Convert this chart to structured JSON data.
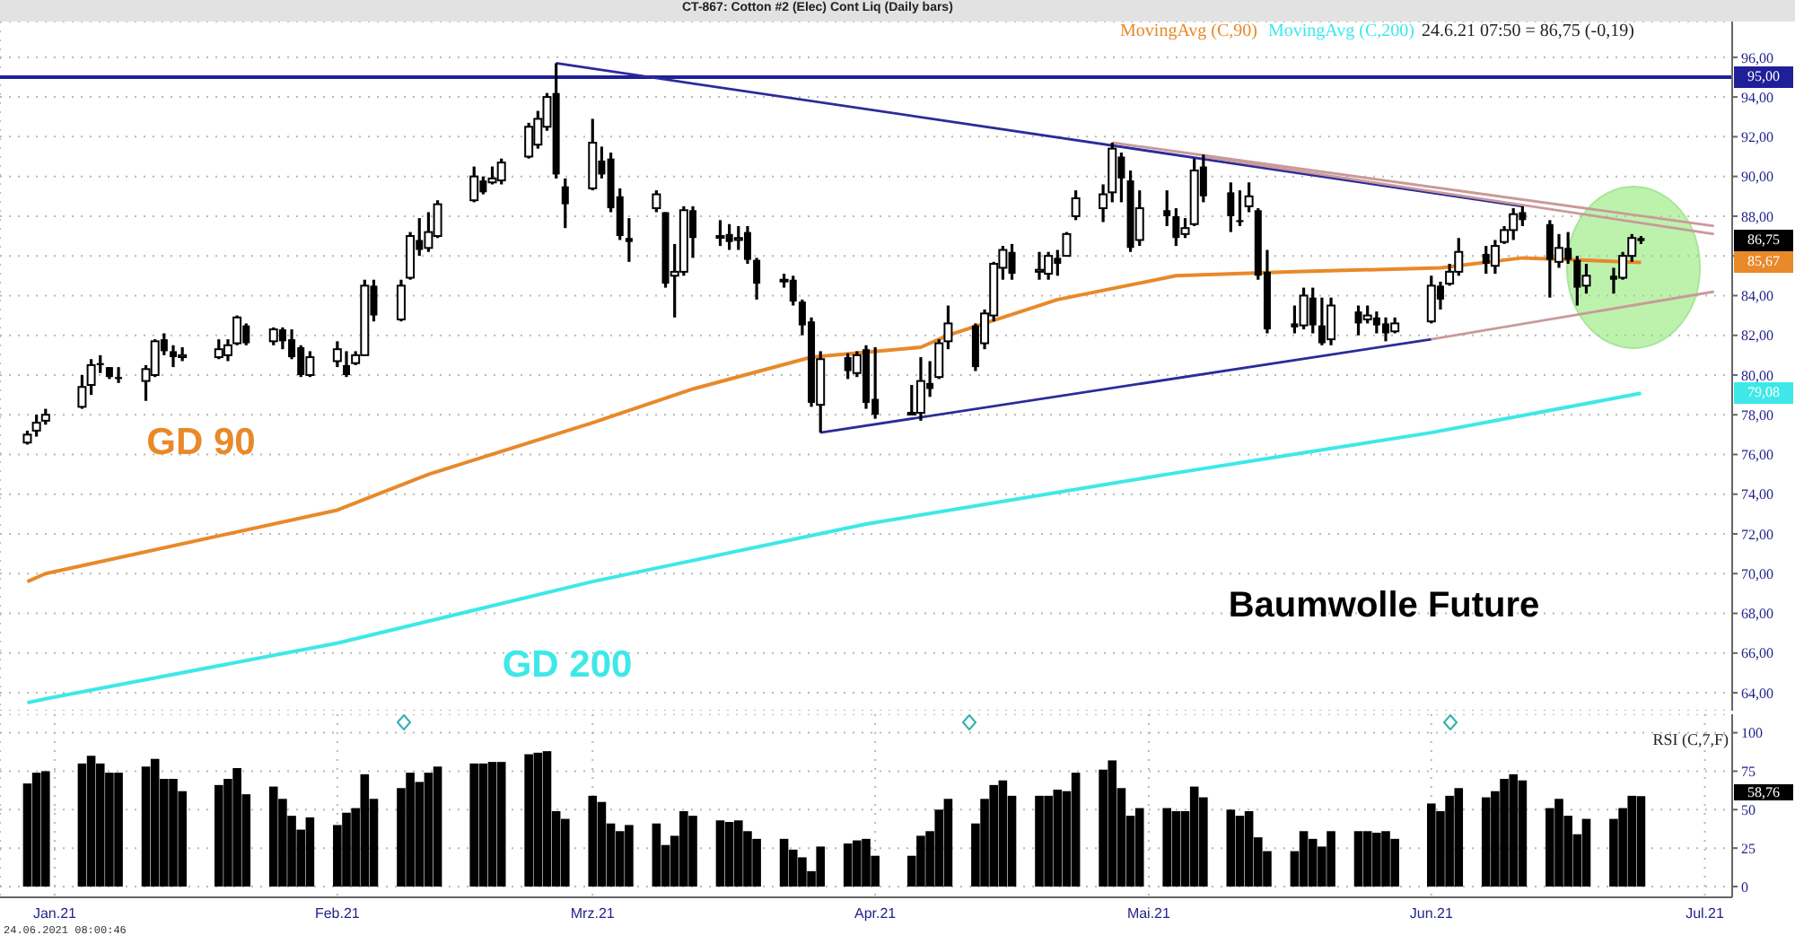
{
  "chart_data": [
    {
      "type": "candlestick",
      "title": "CT-867: Cotton #2 (Elec) Cont Liq (Daily bars)",
      "x": [
        "2020-12-29",
        "2020-12-30",
        "2020-12-31",
        "2021-01-04",
        "2021-01-05",
        "2021-01-06",
        "2021-01-07",
        "2021-01-08",
        "2021-01-11",
        "2021-01-12",
        "2021-01-13",
        "2021-01-14",
        "2021-01-15",
        "2021-01-19",
        "2021-01-20",
        "2021-01-21",
        "2021-01-22",
        "2021-01-25",
        "2021-01-26",
        "2021-01-27",
        "2021-01-28",
        "2021-01-29",
        "2021-02-01",
        "2021-02-02",
        "2021-02-03",
        "2021-02-04",
        "2021-02-05",
        "2021-02-08",
        "2021-02-09",
        "2021-02-10",
        "2021-02-11",
        "2021-02-12",
        "2021-02-16",
        "2021-02-17",
        "2021-02-18",
        "2021-02-19",
        "2021-02-22",
        "2021-02-23",
        "2021-02-24",
        "2021-02-25",
        "2021-02-26",
        "2021-03-01",
        "2021-03-02",
        "2021-03-03",
        "2021-03-04",
        "2021-03-05",
        "2021-03-08",
        "2021-03-09",
        "2021-03-10",
        "2021-03-11",
        "2021-03-12",
        "2021-03-15",
        "2021-03-16",
        "2021-03-17",
        "2021-03-18",
        "2021-03-19",
        "2021-03-22",
        "2021-03-23",
        "2021-03-24",
        "2021-03-25",
        "2021-03-26",
        "2021-03-29",
        "2021-03-30",
        "2021-03-31",
        "2021-04-01",
        "2021-04-05",
        "2021-04-06",
        "2021-04-07",
        "2021-04-08",
        "2021-04-09",
        "2021-04-12",
        "2021-04-13",
        "2021-04-14",
        "2021-04-15",
        "2021-04-16",
        "2021-04-19",
        "2021-04-20",
        "2021-04-21",
        "2021-04-22",
        "2021-04-23",
        "2021-04-26",
        "2021-04-27",
        "2021-04-28",
        "2021-04-29",
        "2021-04-30",
        "2021-05-03",
        "2021-05-04",
        "2021-05-05",
        "2021-05-06",
        "2021-05-07",
        "2021-05-10",
        "2021-05-11",
        "2021-05-12",
        "2021-05-13",
        "2021-05-14",
        "2021-05-17",
        "2021-05-18",
        "2021-05-19",
        "2021-05-20",
        "2021-05-21",
        "2021-05-24",
        "2021-05-25",
        "2021-05-26",
        "2021-05-27",
        "2021-05-28",
        "2021-06-01",
        "2021-06-02",
        "2021-06-03",
        "2021-06-04",
        "2021-06-07",
        "2021-06-08",
        "2021-06-09",
        "2021-06-10",
        "2021-06-11",
        "2021-06-14",
        "2021-06-15",
        "2021-06-16",
        "2021-06-17",
        "2021-06-18",
        "2021-06-21",
        "2021-06-22",
        "2021-06-23",
        "2021-06-24"
      ],
      "ohlc": [
        [
          76.6,
          77.2,
          76.5,
          77.0
        ],
        [
          77.2,
          78.0,
          76.9,
          77.6
        ],
        [
          77.7,
          78.3,
          77.5,
          78.0
        ],
        [
          78.4,
          80.0,
          78.3,
          79.4
        ],
        [
          79.5,
          80.8,
          79.0,
          80.5
        ],
        [
          80.6,
          81.0,
          80.1,
          80.5
        ],
        [
          80.4,
          80.4,
          79.8,
          79.9
        ],
        [
          79.9,
          80.4,
          79.6,
          79.8
        ],
        [
          79.7,
          80.5,
          78.7,
          80.3
        ],
        [
          80.0,
          81.8,
          79.9,
          81.7
        ],
        [
          81.8,
          82.1,
          81.0,
          81.2
        ],
        [
          81.2,
          81.5,
          80.4,
          80.9
        ],
        [
          80.9,
          81.4,
          80.7,
          81.0
        ],
        [
          80.9,
          81.8,
          80.8,
          81.3
        ],
        [
          81.0,
          81.8,
          80.7,
          81.5
        ],
        [
          81.6,
          83.0,
          81.5,
          82.9
        ],
        [
          82.5,
          82.6,
          81.5,
          81.6
        ],
        [
          81.7,
          82.4,
          81.5,
          82.3
        ],
        [
          82.3,
          82.4,
          81.3,
          81.7
        ],
        [
          81.8,
          82.3,
          80.8,
          80.9
        ],
        [
          81.4,
          81.5,
          79.9,
          80.0
        ],
        [
          80.0,
          81.2,
          79.9,
          80.9
        ],
        [
          80.7,
          81.7,
          80.4,
          81.3
        ],
        [
          80.5,
          81.2,
          79.9,
          80.0
        ],
        [
          80.6,
          81.2,
          80.5,
          81.0
        ],
        [
          81.0,
          84.8,
          81.0,
          84.5
        ],
        [
          84.5,
          84.8,
          82.7,
          83.0
        ],
        [
          82.8,
          84.8,
          82.7,
          84.5
        ],
        [
          84.9,
          87.2,
          84.8,
          87.0
        ],
        [
          86.8,
          87.9,
          86.0,
          86.3
        ],
        [
          86.4,
          88.2,
          86.2,
          87.2
        ],
        [
          87.0,
          88.8,
          86.9,
          88.6
        ],
        [
          88.8,
          90.5,
          88.7,
          90.0
        ],
        [
          89.8,
          90.0,
          89.1,
          89.2
        ],
        [
          89.7,
          90.5,
          89.6,
          89.9
        ],
        [
          89.8,
          90.9,
          89.6,
          90.7
        ],
        [
          91.0,
          92.7,
          90.9,
          92.5
        ],
        [
          91.6,
          93.3,
          91.4,
          92.9
        ],
        [
          92.5,
          94.2,
          92.3,
          94.0
        ],
        [
          94.2,
          95.7,
          89.9,
          90.1
        ],
        [
          89.5,
          89.9,
          87.4,
          88.6
        ],
        [
          89.4,
          92.9,
          89.3,
          91.7
        ],
        [
          90.8,
          91.5,
          89.9,
          90.1
        ],
        [
          90.9,
          91.2,
          88.2,
          88.4
        ],
        [
          89.0,
          89.4,
          86.8,
          87.0
        ],
        [
          86.9,
          87.9,
          85.7,
          86.7
        ],
        [
          88.4,
          89.3,
          88.2,
          89.1
        ],
        [
          88.2,
          88.2,
          84.4,
          84.6
        ],
        [
          85.0,
          86.6,
          82.9,
          85.2
        ],
        [
          85.2,
          88.5,
          85.0,
          88.3
        ],
        [
          88.3,
          88.5,
          85.9,
          86.9
        ],
        [
          87.0,
          87.8,
          86.5,
          87.0
        ],
        [
          87.1,
          87.6,
          86.3,
          86.7
        ],
        [
          86.8,
          87.5,
          86.3,
          86.9
        ],
        [
          87.2,
          87.5,
          85.6,
          85.8
        ],
        [
          85.8,
          85.9,
          83.8,
          84.6
        ],
        [
          84.8,
          85.1,
          84.4,
          84.8
        ],
        [
          84.8,
          85.0,
          83.5,
          83.7
        ],
        [
          83.7,
          83.8,
          82.0,
          82.5
        ],
        [
          82.7,
          82.9,
          78.4,
          78.6
        ],
        [
          78.5,
          81.2,
          77.1,
          80.8
        ],
        [
          80.9,
          81.1,
          79.8,
          80.2
        ],
        [
          80.1,
          81.2,
          79.9,
          81.0
        ],
        [
          81.3,
          81.5,
          78.3,
          78.6
        ],
        [
          78.8,
          81.4,
          77.8,
          78.0
        ],
        [
          78.1,
          79.5,
          78.0,
          78.1
        ],
        [
          78.1,
          80.9,
          77.7,
          79.7
        ],
        [
          79.6,
          80.7,
          78.9,
          79.3
        ],
        [
          79.9,
          81.8,
          79.8,
          81.6
        ],
        [
          81.7,
          83.5,
          81.3,
          82.6
        ],
        [
          82.5,
          82.6,
          80.2,
          80.4
        ],
        [
          81.6,
          83.3,
          81.3,
          83.1
        ],
        [
          83.0,
          85.7,
          82.7,
          85.6
        ],
        [
          85.4,
          86.5,
          84.8,
          86.3
        ],
        [
          86.2,
          86.6,
          84.8,
          85.1
        ],
        [
          85.2,
          86.2,
          84.8,
          85.3
        ],
        [
          85.1,
          86.2,
          84.8,
          86.0
        ],
        [
          85.9,
          86.3,
          85.0,
          85.6
        ],
        [
          86.0,
          87.2,
          86.0,
          87.1
        ],
        [
          88.0,
          89.3,
          87.8,
          88.9
        ],
        [
          88.4,
          89.6,
          87.7,
          89.1
        ],
        [
          89.2,
          91.7,
          88.7,
          91.4
        ],
        [
          91.0,
          91.2,
          88.7,
          89.9
        ],
        [
          89.8,
          90.3,
          86.2,
          86.4
        ],
        [
          86.8,
          89.3,
          86.5,
          88.4
        ],
        [
          88.3,
          89.3,
          87.5,
          88.0
        ],
        [
          88.0,
          88.4,
          86.5,
          86.9
        ],
        [
          87.1,
          87.9,
          86.9,
          87.4
        ],
        [
          87.6,
          90.9,
          87.5,
          90.3
        ],
        [
          90.5,
          91.1,
          88.7,
          89.0
        ],
        [
          89.2,
          89.7,
          87.2,
          88.0
        ],
        [
          87.8,
          89.3,
          87.5,
          87.7
        ],
        [
          88.5,
          89.7,
          88.2,
          89.0
        ],
        [
          88.3,
          88.4,
          84.8,
          85.0
        ],
        [
          85.2,
          86.3,
          82.1,
          82.3
        ],
        [
          82.6,
          83.5,
          82.1,
          82.4
        ],
        [
          82.5,
          84.4,
          82.3,
          84.0
        ],
        [
          83.9,
          84.4,
          82.1,
          82.5
        ],
        [
          82.5,
          83.9,
          81.5,
          81.6
        ],
        [
          81.8,
          83.9,
          81.5,
          83.5
        ],
        [
          83.2,
          83.5,
          82.0,
          82.6
        ],
        [
          82.8,
          83.5,
          82.6,
          83.0
        ],
        [
          82.9,
          83.2,
          82.1,
          82.5
        ],
        [
          82.6,
          82.9,
          81.7,
          82.1
        ],
        [
          82.2,
          82.9,
          82.1,
          82.6
        ],
        [
          82.7,
          85.0,
          82.6,
          84.5
        ],
        [
          84.5,
          84.7,
          83.3,
          83.8
        ],
        [
          84.6,
          85.6,
          84.5,
          85.2
        ],
        [
          85.2,
          86.9,
          85.0,
          86.2
        ],
        [
          86.1,
          86.5,
          85.1,
          85.6
        ],
        [
          85.5,
          86.8,
          85.1,
          86.5
        ],
        [
          86.7,
          87.5,
          86.6,
          87.3
        ],
        [
          87.3,
          88.4,
          86.8,
          88.1
        ],
        [
          88.2,
          88.5,
          87.5,
          87.8
        ],
        [
          87.6,
          87.8,
          83.9,
          85.8
        ],
        [
          85.7,
          87.1,
          85.4,
          86.4
        ],
        [
          86.4,
          87.2,
          85.6,
          85.8
        ],
        [
          85.8,
          86.0,
          83.5,
          84.4
        ],
        [
          84.5,
          85.6,
          84.1,
          85.0
        ],
        [
          85.0,
          85.4,
          84.1,
          84.8
        ],
        [
          84.9,
          86.2,
          84.8,
          86.0
        ],
        [
          86.0,
          87.1,
          85.7,
          86.9
        ],
        [
          86.9,
          87.0,
          86.6,
          86.75
        ]
      ],
      "color": "#000000",
      "series": [
        {
          "name": "MovingAvg (C,90)",
          "type": "line",
          "color": "#e8892a",
          "x": [
            "2020-12-29",
            "2020-12-31",
            "2021-02-01",
            "2021-02-11",
            "2021-03-01",
            "2021-03-12",
            "2021-03-25",
            "2021-04-06",
            "2021-04-09",
            "2021-04-21",
            "2021-05-04",
            "2021-05-17",
            "2021-06-02",
            "2021-06-11",
            "2021-06-24"
          ],
          "values": [
            69.6,
            70.0,
            73.2,
            75.0,
            77.6,
            79.3,
            80.9,
            81.4,
            82.0,
            83.8,
            85.0,
            85.2,
            85.4,
            85.9,
            85.67
          ]
        },
        {
          "name": "MovingAvg (C,200)",
          "type": "line",
          "color": "#3ee8e8",
          "x": [
            "2020-12-29",
            "2020-12-31",
            "2021-02-01",
            "2021-03-01",
            "2021-03-31",
            "2021-05-03",
            "2021-06-01",
            "2021-06-24"
          ],
          "values": [
            63.5,
            63.7,
            66.5,
            69.6,
            72.5,
            75.0,
            77.1,
            79.08
          ]
        },
        {
          "type": "line",
          "color": "#2b2b9a",
          "x": [
            "2021-02-25",
            "2021-06-11"
          ],
          "values": [
            95.7,
            88.5
          ]
        },
        {
          "type": "line",
          "color": "#c99a9a",
          "x": [
            "2021-04-27",
            "2021-07-02"
          ],
          "values": [
            91.7,
            87.5
          ]
        },
        {
          "type": "line",
          "color": "#c99a9a",
          "x": [
            "2021-05-07",
            "2021-07-02"
          ],
          "values": [
            91.0,
            87.1
          ]
        },
        {
          "type": "line",
          "color": "#2b2b9a",
          "x": [
            "2021-03-26",
            "2021-06-01"
          ],
          "values": [
            77.1,
            81.8
          ]
        },
        {
          "type": "line",
          "color": "#c99a9a",
          "x": [
            "2021-06-01",
            "2021-07-02"
          ],
          "values": [
            81.8,
            84.2
          ]
        }
      ],
      "ref_lines": [
        {
          "axis": "y",
          "value": 95,
          "label": "95,00",
          "color": "#1f1f99"
        }
      ],
      "annotations": [
        "24.6.21 07:50 = 86,75 (-0,19)",
        "GD 90",
        "GD 200",
        "Baumwolle Future",
        "86,75",
        "85,67",
        "79,08"
      ],
      "xlim": [
        "2020-12-26",
        "2021-07-04"
      ],
      "xticks": [
        {
          "value": "2021-01-01",
          "label": null
        },
        {
          "value": "2021-02-01",
          "label": null
        },
        {
          "value": "2021-03-01",
          "label": null
        },
        {
          "value": "2021-04-01",
          "label": null
        },
        {
          "value": "2021-05-01",
          "label": null
        },
        {
          "value": "2021-06-01",
          "label": null
        },
        {
          "value": "2021-07-01",
          "label": null
        }
      ],
      "ylim": [
        63.1,
        97.8
      ],
      "yticks": [
        {
          "value": 64,
          "label": "64,00"
        },
        {
          "value": 66,
          "label": "66,00"
        },
        {
          "value": 68,
          "label": "68,00"
        },
        {
          "value": 70,
          "label": "70,00"
        },
        {
          "value": 72,
          "label": "72,00"
        },
        {
          "value": 74,
          "label": "74,00"
        },
        {
          "value": 76,
          "label": "76,00"
        },
        {
          "value": 78,
          "label": "78,00"
        },
        {
          "value": 80,
          "label": "80,00"
        },
        {
          "value": 82,
          "label": "82,00"
        },
        {
          "value": 84,
          "label": "84,00"
        },
        {
          "value": 86,
          "label": null
        },
        {
          "value": 88,
          "label": "88,00"
        },
        {
          "value": 90,
          "label": "90,00"
        },
        {
          "value": 92,
          "label": "92,00"
        },
        {
          "value": 94,
          "label": "94,00"
        },
        {
          "value": 96,
          "label": "96,00"
        }
      ],
      "grid": true,
      "legend": "top right",
      "tick_labels": "y"
    },
    {
      "type": "bar",
      "title": "RSI (C,7,F)",
      "x": [
        "2020-12-29",
        "2020-12-30",
        "2020-12-31",
        "2021-01-04",
        "2021-01-05",
        "2021-01-06",
        "2021-01-07",
        "2021-01-08",
        "2021-01-11",
        "2021-01-12",
        "2021-01-13",
        "2021-01-14",
        "2021-01-15",
        "2021-01-19",
        "2021-01-20",
        "2021-01-21",
        "2021-01-22",
        "2021-01-25",
        "2021-01-26",
        "2021-01-27",
        "2021-01-28",
        "2021-01-29",
        "2021-02-01",
        "2021-02-02",
        "2021-02-03",
        "2021-02-04",
        "2021-02-05",
        "2021-02-08",
        "2021-02-09",
        "2021-02-10",
        "2021-02-11",
        "2021-02-12",
        "2021-02-16",
        "2021-02-17",
        "2021-02-18",
        "2021-02-19",
        "2021-02-22",
        "2021-02-23",
        "2021-02-24",
        "2021-02-25",
        "2021-02-26",
        "2021-03-01",
        "2021-03-02",
        "2021-03-03",
        "2021-03-04",
        "2021-03-05",
        "2021-03-08",
        "2021-03-09",
        "2021-03-10",
        "2021-03-11",
        "2021-03-12",
        "2021-03-15",
        "2021-03-16",
        "2021-03-17",
        "2021-03-18",
        "2021-03-19",
        "2021-03-22",
        "2021-03-23",
        "2021-03-24",
        "2021-03-25",
        "2021-03-26",
        "2021-03-29",
        "2021-03-30",
        "2021-03-31",
        "2021-04-01",
        "2021-04-05",
        "2021-04-06",
        "2021-04-07",
        "2021-04-08",
        "2021-04-09",
        "2021-04-12",
        "2021-04-13",
        "2021-04-14",
        "2021-04-15",
        "2021-04-16",
        "2021-04-19",
        "2021-04-20",
        "2021-04-21",
        "2021-04-22",
        "2021-04-23",
        "2021-04-26",
        "2021-04-27",
        "2021-04-28",
        "2021-04-29",
        "2021-04-30",
        "2021-05-03",
        "2021-05-04",
        "2021-05-05",
        "2021-05-06",
        "2021-05-07",
        "2021-05-10",
        "2021-05-11",
        "2021-05-12",
        "2021-05-13",
        "2021-05-14",
        "2021-05-17",
        "2021-05-18",
        "2021-05-19",
        "2021-05-20",
        "2021-05-21",
        "2021-05-24",
        "2021-05-25",
        "2021-05-26",
        "2021-05-27",
        "2021-05-28",
        "2021-06-01",
        "2021-06-02",
        "2021-06-03",
        "2021-06-04",
        "2021-06-07",
        "2021-06-08",
        "2021-06-09",
        "2021-06-10",
        "2021-06-11",
        "2021-06-14",
        "2021-06-15",
        "2021-06-16",
        "2021-06-17",
        "2021-06-18",
        "2021-06-21",
        "2021-06-22",
        "2021-06-23",
        "2021-06-24"
      ],
      "values": [
        67,
        74,
        75,
        80,
        85,
        80,
        74,
        74,
        78,
        83,
        70,
        70,
        62,
        66,
        70,
        77,
        60,
        65,
        57,
        46,
        37,
        45,
        40,
        48,
        51,
        73,
        57,
        64,
        74,
        68,
        74,
        78,
        80,
        80,
        81,
        81,
        86,
        87,
        88,
        49,
        44,
        59,
        55,
        41,
        36,
        40,
        41,
        27,
        33,
        49,
        46,
        43,
        42,
        43,
        36,
        31,
        31,
        24,
        19,
        10,
        26,
        28,
        30,
        31,
        20,
        20,
        33,
        36,
        50,
        57,
        41,
        57,
        66,
        69,
        59,
        59,
        59,
        63,
        62,
        74,
        76,
        82,
        64,
        46,
        51,
        51,
        49,
        49,
        65,
        58,
        50,
        46,
        49,
        32,
        23,
        23,
        36,
        31,
        26,
        36,
        36,
        36,
        35,
        36,
        31,
        54,
        49,
        59,
        64,
        58,
        62,
        70,
        73,
        69,
        51,
        57,
        46,
        34,
        44,
        44,
        51,
        59,
        58.76
      ],
      "color": "#000000",
      "annotations": [
        "58,76",
        "24.06.2021 08:00:46"
      ],
      "xlim": [
        "2020-12-26",
        "2021-07-04"
      ],
      "xticks": [
        {
          "value": "2021-01-01",
          "label": "Jan.21"
        },
        {
          "value": "2021-02-01",
          "label": "Feb.21"
        },
        {
          "value": "2021-03-01",
          "label": "Mrz.21"
        },
        {
          "value": "2021-04-01",
          "label": "Apr.21"
        },
        {
          "value": "2021-05-01",
          "label": "Mai.21"
        },
        {
          "value": "2021-06-01",
          "label": "Jun.21"
        },
        {
          "value": "2021-07-01",
          "label": "Jul.21"
        }
      ],
      "ylim": [
        -7,
        112
      ],
      "yticks": [
        0,
        25,
        50,
        75,
        100
      ],
      "grid": true
    }
  ]
}
